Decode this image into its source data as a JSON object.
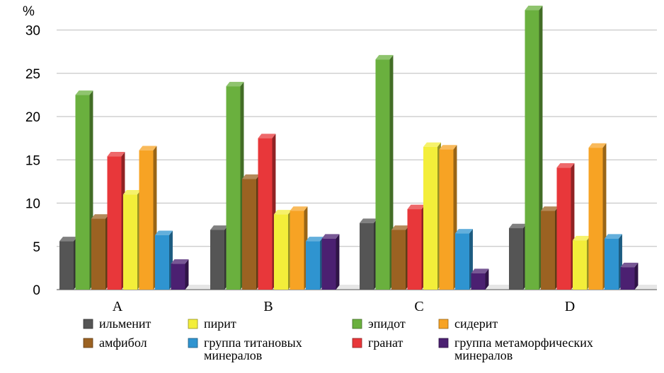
{
  "chart_data": {
    "type": "bar",
    "style": "3d-clustered-columns",
    "title": "",
    "xlabel": "",
    "ylabel": "%",
    "ylim": [
      0,
      30
    ],
    "yticks": [
      0,
      5,
      10,
      15,
      20,
      25,
      30
    ],
    "grid": true,
    "legend_position": "bottom",
    "categories": [
      "A",
      "B",
      "C",
      "D"
    ],
    "series": [
      {
        "name": "ильменит",
        "color": "#555555",
        "values": [
          5.6,
          6.9,
          7.7,
          7.1
        ]
      },
      {
        "name": "эпидот",
        "color": "#6ab03e",
        "values": [
          22.5,
          23.5,
          26.6,
          32.3
        ]
      },
      {
        "name": "амфибол",
        "color": "#9b6222",
        "values": [
          8.2,
          12.8,
          6.9,
          9.1
        ]
      },
      {
        "name": "гранат",
        "color": "#e8373a",
        "values": [
          15.4,
          17.5,
          9.3,
          14.1
        ]
      },
      {
        "name": "пирит",
        "color": "#f3ee3a",
        "values": [
          11.0,
          8.7,
          16.5,
          5.7
        ]
      },
      {
        "name": "сидерит",
        "color": "#f7a324",
        "values": [
          16.1,
          9.1,
          16.2,
          16.4
        ]
      },
      {
        "name": "группа титановых минералов",
        "color": "#2f94d0",
        "values": [
          6.3,
          5.6,
          6.5,
          5.9
        ]
      },
      {
        "name": "группа метаморфических минералов",
        "color": "#4b2071",
        "values": [
          3.0,
          5.9,
          1.9,
          2.6
        ]
      }
    ],
    "legend": {
      "rows": [
        [
          {
            "series": 0,
            "label_lines": [
              "ильменит"
            ]
          },
          {
            "series": 4,
            "label_lines": [
              "пирит"
            ]
          },
          {
            "series": 1,
            "label_lines": [
              "эпидот"
            ]
          },
          {
            "series": 5,
            "label_lines": [
              "сидерит"
            ]
          }
        ],
        [
          {
            "series": 2,
            "label_lines": [
              "амфибол"
            ]
          },
          {
            "series": 6,
            "label_lines": [
              "группа титановых",
              "минералов"
            ]
          },
          {
            "series": 3,
            "label_lines": [
              "гранат"
            ]
          },
          {
            "series": 7,
            "label_lines": [
              "группа метаморфических",
              "минералов"
            ]
          }
        ]
      ]
    }
  }
}
